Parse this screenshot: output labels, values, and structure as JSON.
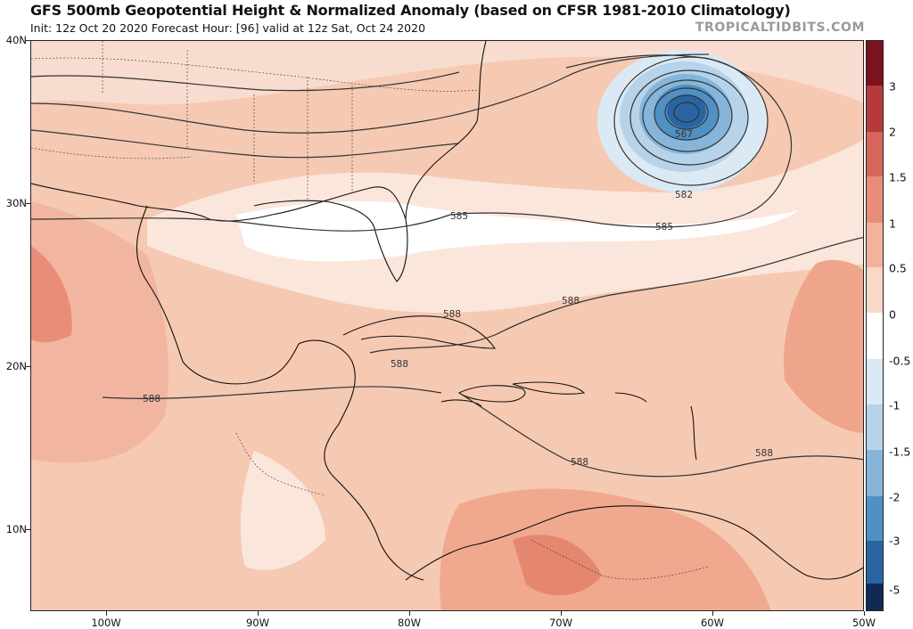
{
  "header": {
    "title": "GFS 500mb Geopotential Height & Normalized Anomaly (based on CFSR 1981-2010 Climatology)",
    "subtitle": "Init: 12z Oct 20 2020   Forecast Hour: [96]   valid at 12z Sat, Oct 24 2020",
    "brand": "TROPICALTIDBITS.COM"
  },
  "map": {
    "lat_labels": [
      "40N",
      "30N",
      "20N",
      "10N"
    ],
    "lon_labels": [
      "100W",
      "90W",
      "80W",
      "70W",
      "60W",
      "50W"
    ],
    "contour_labels": [
      "567",
      "582",
      "585",
      "585",
      "588",
      "588",
      "588",
      "588",
      "588",
      "588"
    ],
    "extent": {
      "lon_min": -105,
      "lon_max": -50,
      "lat_min": 5,
      "lat_max": 40
    }
  },
  "colorbar": {
    "labels": [
      "3",
      "2",
      "1.5",
      "1",
      "0.5",
      "0",
      "-0.5",
      "-1",
      "-1.5",
      "-2",
      "-3",
      "-5"
    ],
    "colors": {
      "high": "#7a1220",
      "warm3": "#b63a3a",
      "warm2": "#d8655a",
      "warm15": "#e88e78",
      "warm1": "#f1b39b",
      "warm05": "#f8d8c9",
      "neutral": "#ffffff",
      "cool05": "#dbe9f4",
      "cool1": "#b6d3ea",
      "cool15": "#86b5d9",
      "cool2": "#5090c3",
      "cool3": "#2a65a3",
      "low": "#112a55"
    }
  }
}
